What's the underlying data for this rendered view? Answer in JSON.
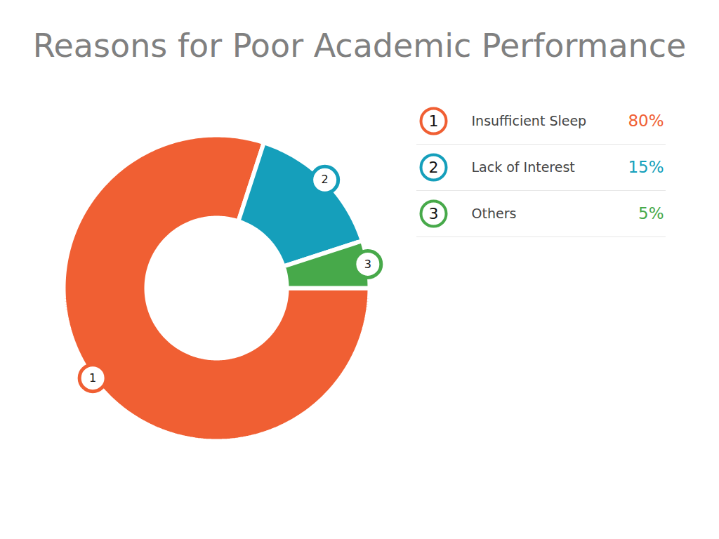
{
  "chart_data": {
    "type": "donut",
    "title": "Reasons for Poor Academic Performance",
    "categories": [
      "Insufficient Sleep",
      "Lack of Interest",
      "Others"
    ],
    "values": [
      80,
      15,
      5
    ],
    "value_labels": [
      "80%",
      "15%",
      "5%"
    ],
    "index_labels": [
      "1",
      "2",
      "3"
    ],
    "colors": [
      "#f05f33",
      "#159fbb",
      "#47a94a"
    ],
    "legend": "right"
  }
}
